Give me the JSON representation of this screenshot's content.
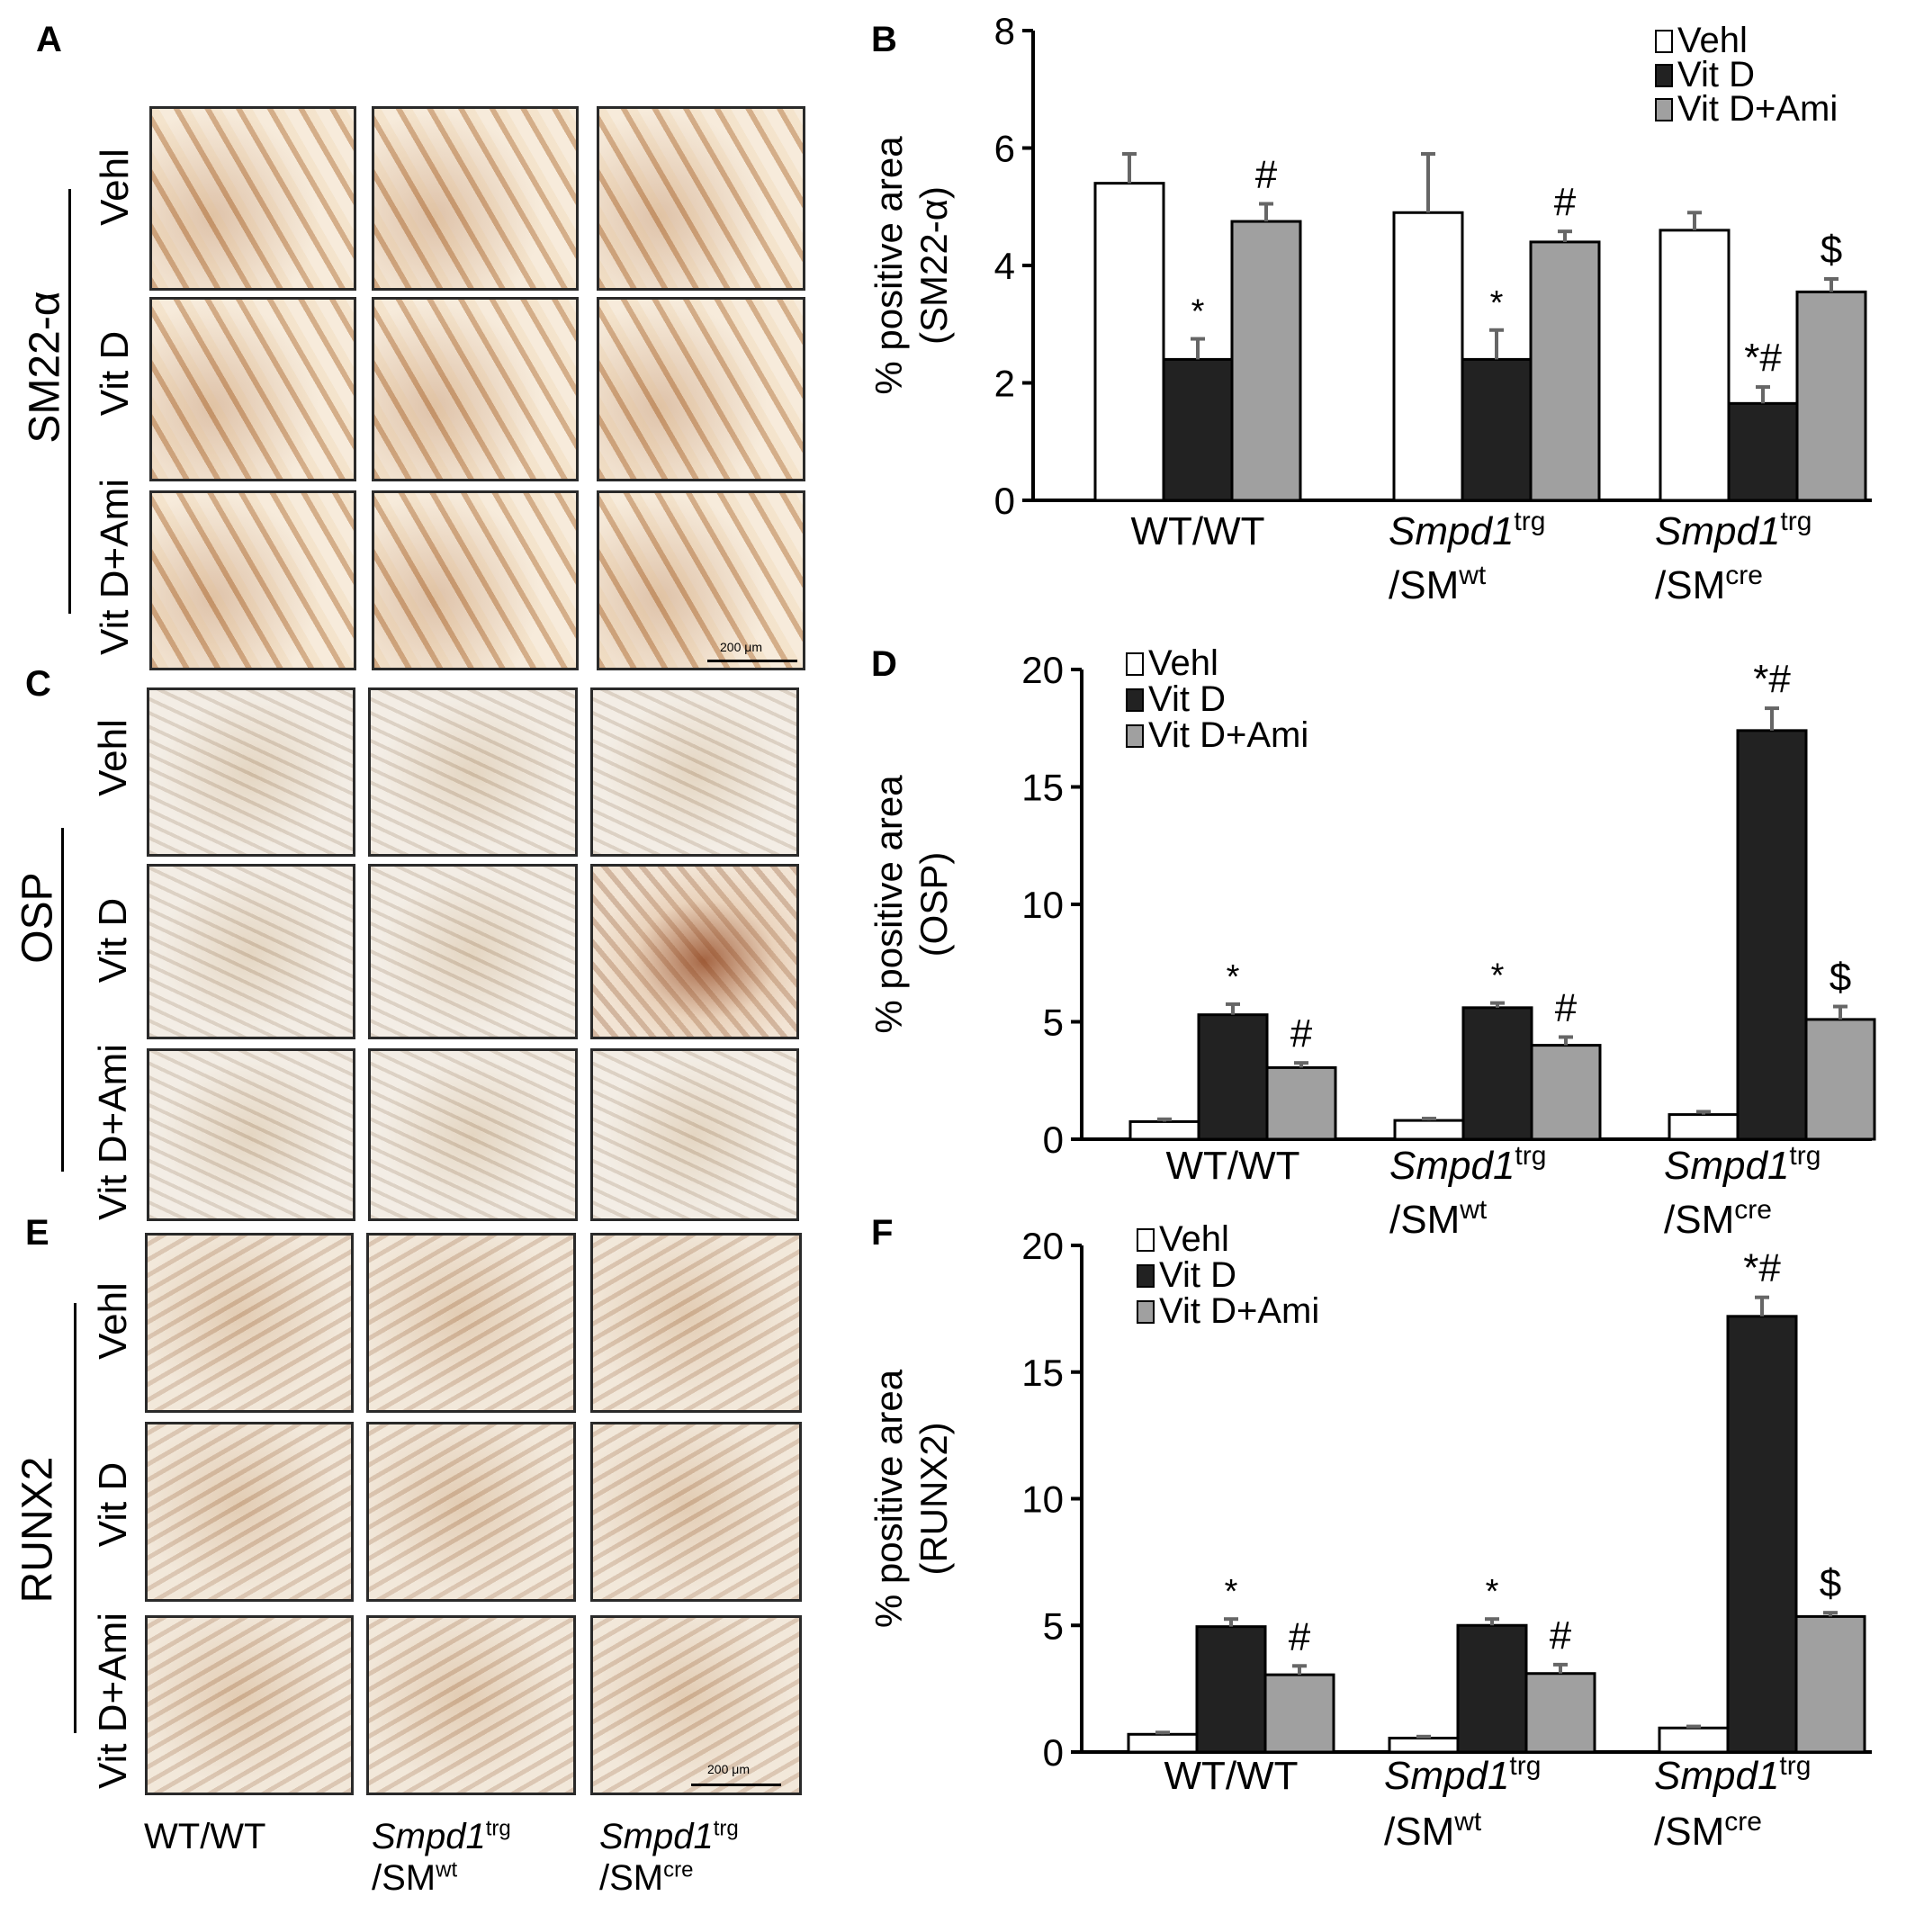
{
  "panels": {
    "A": "A",
    "B": "B",
    "C": "C",
    "D": "D",
    "E": "E",
    "F": "F"
  },
  "row_labels": [
    "Vehl",
    "Vit D",
    "Vit D+Ami"
  ],
  "stain_labels": {
    "A": "SM22-α",
    "C": "OSP",
    "E": "RUNX2"
  },
  "scale_bar_label": "200 μm",
  "column_labels": [
    {
      "main": "WT/WT",
      "italic": "",
      "sup": "",
      "second": "",
      "second_sup": ""
    },
    {
      "main": "",
      "italic": "Smpd1",
      "sup": "trg",
      "second": "/SM",
      "second_sup": "wt"
    },
    {
      "main": "",
      "italic": "Smpd1",
      "sup": "trg",
      "second": "/SM",
      "second_sup": "cre"
    }
  ],
  "chart_data": [
    {
      "panel": "B",
      "type": "bar",
      "ylabel": "% positive area (SM22-α)",
      "ylabel_lines": [
        "% positive area",
        "(SM22-α)"
      ],
      "ylim": [
        0,
        8
      ],
      "yticks": [
        0,
        2,
        4,
        6,
        8
      ],
      "categories": [
        "WT/WT",
        "Smpd1trg/SMwt",
        "Smpd1trg/SMcre"
      ],
      "legend_position": "top-right",
      "series": [
        {
          "name": "Vehl",
          "color": "#ffffff",
          "values": [
            5.4,
            4.9,
            4.6
          ],
          "errors": [
            0.5,
            1.0,
            0.3
          ]
        },
        {
          "name": "Vit D",
          "color": "#222222",
          "values": [
            2.4,
            2.4,
            1.65
          ],
          "errors": [
            0.35,
            0.5,
            0.28
          ]
        },
        {
          "name": "Vit D+Ami",
          "color": "#a0a0a0",
          "values": [
            4.75,
            4.4,
            3.55
          ],
          "errors": [
            0.3,
            0.18,
            0.22
          ]
        }
      ],
      "annotations": [
        {
          "category": 0,
          "series": 1,
          "text": "*"
        },
        {
          "category": 0,
          "series": 2,
          "text": "#"
        },
        {
          "category": 1,
          "series": 1,
          "text": "*"
        },
        {
          "category": 1,
          "series": 2,
          "text": "#"
        },
        {
          "category": 2,
          "series": 1,
          "text": "*#"
        },
        {
          "category": 2,
          "series": 2,
          "text": "$"
        }
      ]
    },
    {
      "panel": "D",
      "type": "bar",
      "ylabel": "% positive area (OSP)",
      "ylabel_lines": [
        "% positive area",
        "(OSP)"
      ],
      "ylim": [
        0,
        20
      ],
      "yticks": [
        0,
        5,
        10,
        15,
        20
      ],
      "categories": [
        "WT/WT",
        "Smpd1trg/SMwt",
        "Smpd1trg/SMcre"
      ],
      "legend_position": "top-left",
      "series": [
        {
          "name": "Vehl",
          "color": "#ffffff",
          "values": [
            0.75,
            0.8,
            1.05
          ],
          "errors": [
            0.1,
            0.08,
            0.12
          ]
        },
        {
          "name": "Vit D",
          "color": "#222222",
          "values": [
            5.3,
            5.6,
            17.4
          ],
          "errors": [
            0.45,
            0.2,
            0.95
          ]
        },
        {
          "name": "Vit D+Ami",
          "color": "#a0a0a0",
          "values": [
            3.05,
            4.0,
            5.1
          ],
          "errors": [
            0.2,
            0.35,
            0.55
          ]
        }
      ],
      "annotations": [
        {
          "category": 0,
          "series": 1,
          "text": "*"
        },
        {
          "category": 0,
          "series": 2,
          "text": "#"
        },
        {
          "category": 1,
          "series": 1,
          "text": "*"
        },
        {
          "category": 1,
          "series": 2,
          "text": "#"
        },
        {
          "category": 2,
          "series": 1,
          "text": "*#"
        },
        {
          "category": 2,
          "series": 2,
          "text": "$"
        }
      ]
    },
    {
      "panel": "F",
      "type": "bar",
      "ylabel": "% positive area (RUNX2)",
      "ylabel_lines": [
        "% positive area",
        "(RUNX2)"
      ],
      "ylim": [
        0,
        20
      ],
      "yticks": [
        0,
        5,
        10,
        15,
        20
      ],
      "categories": [
        "WT/WT",
        "Smpd1trg/SMwt",
        "Smpd1trg/SMcre"
      ],
      "legend_position": "top-left",
      "series": [
        {
          "name": "Vehl",
          "color": "#ffffff",
          "values": [
            0.7,
            0.55,
            0.95
          ],
          "errors": [
            0.07,
            0.06,
            0.06
          ]
        },
        {
          "name": "Vit D",
          "color": "#222222",
          "values": [
            4.95,
            5.0,
            17.2
          ],
          "errors": [
            0.3,
            0.25,
            0.75
          ]
        },
        {
          "name": "Vit D+Ami",
          "color": "#a0a0a0",
          "values": [
            3.05,
            3.1,
            5.35
          ],
          "errors": [
            0.35,
            0.35,
            0.15
          ]
        }
      ],
      "annotations": [
        {
          "category": 0,
          "series": 1,
          "text": "*"
        },
        {
          "category": 0,
          "series": 2,
          "text": "#"
        },
        {
          "category": 1,
          "series": 1,
          "text": "*"
        },
        {
          "category": 1,
          "series": 2,
          "text": "#"
        },
        {
          "category": 2,
          "series": 1,
          "text": "*#"
        },
        {
          "category": 2,
          "series": 2,
          "text": "$"
        }
      ]
    }
  ]
}
